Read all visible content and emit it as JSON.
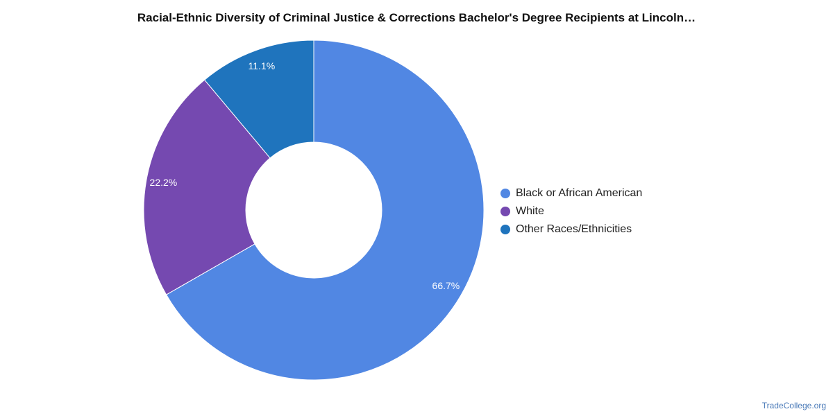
{
  "chart_data": {
    "type": "pie",
    "title": "Racial-Ethnic Diversity of Criminal Justice & Corrections Bachelor's Degree Recipients at Lincoln…",
    "variant": "donut",
    "slices": [
      {
        "name": "Black or African American",
        "value": 66.7,
        "label": "66.7%",
        "color": "#5187e3"
      },
      {
        "name": "White",
        "value": 22.2,
        "label": "22.2%",
        "color": "#7549b0"
      },
      {
        "name": "Other Races/Ethnicities",
        "value": 11.1,
        "label": "11.1%",
        "color": "#1f74bd"
      }
    ],
    "legend": "right"
  },
  "watermark": "TradeCollege.org"
}
